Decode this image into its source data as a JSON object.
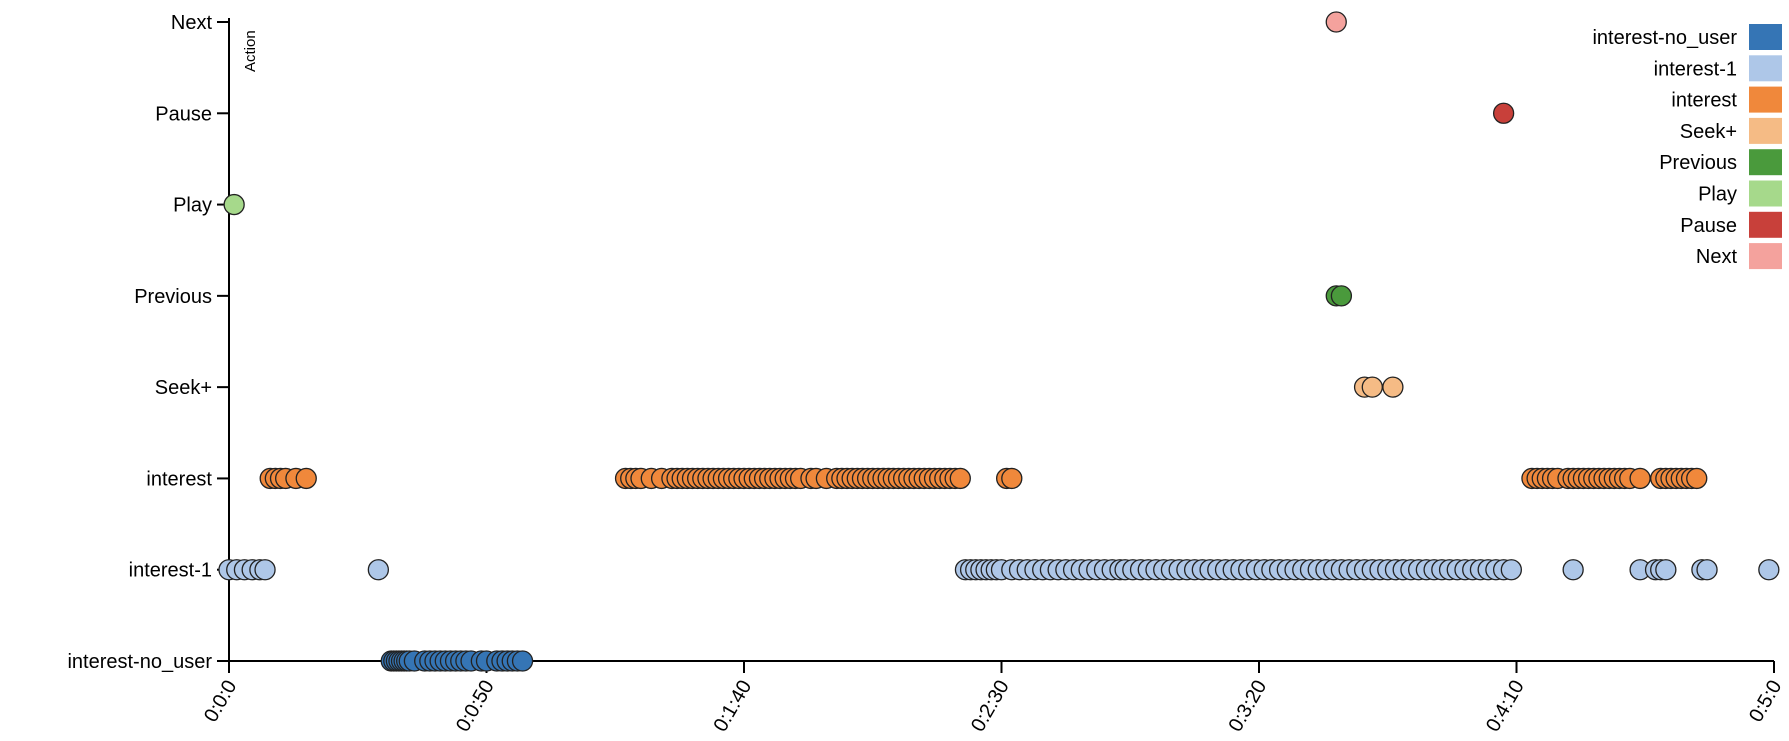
{
  "chart_data": {
    "type": "scatter",
    "title": "",
    "xlabel": "",
    "ylabel": "Action",
    "xlim": [
      0,
      300
    ],
    "x_tick_values": [
      0,
      50,
      100,
      150,
      200,
      250,
      300
    ],
    "x_tick_labels": [
      "0:0:0",
      "0:0:50",
      "0:1:40",
      "0:2:30",
      "0:3:20",
      "0:4:10",
      "0:5:0"
    ],
    "categories": [
      "interest-no_user",
      "interest-1",
      "interest",
      "Seek+",
      "Previous",
      "Play",
      "Pause",
      "Next"
    ],
    "grid": false,
    "legend_position": "top-right",
    "legend": [
      {
        "name": "interest-no_user",
        "color": "#3575b5"
      },
      {
        "name": "interest-1",
        "color": "#aec7e8"
      },
      {
        "name": "interest",
        "color": "#f0883b"
      },
      {
        "name": "Seek+",
        "color": "#f5bb85"
      },
      {
        "name": "Previous",
        "color": "#4a9a3c"
      },
      {
        "name": "Play",
        "color": "#a6d98b"
      },
      {
        "name": "Pause",
        "color": "#c8403a"
      },
      {
        "name": "Next",
        "color": "#f4a29d"
      }
    ],
    "series": [
      {
        "name": "interest-no_user",
        "category": "interest-no_user",
        "color": "#3575b5",
        "x": [
          31.5,
          32,
          32.5,
          33,
          33.5,
          34,
          34.5,
          35,
          36,
          38,
          39,
          40,
          41,
          42,
          43,
          44,
          45,
          46,
          47,
          49,
          50,
          52,
          53,
          54,
          55,
          56,
          57
        ]
      },
      {
        "name": "interest-1",
        "category": "interest-1",
        "color": "#aec7e8",
        "x": [
          0,
          1.5,
          3,
          4.5,
          6,
          7,
          29,
          143,
          144,
          145,
          146,
          147,
          148,
          149,
          150,
          152,
          153.5,
          155,
          156.5,
          158,
          159.5,
          161,
          162.5,
          164,
          165.5,
          167,
          168.5,
          170,
          171.5,
          173,
          174,
          175.5,
          177,
          178.5,
          180,
          181.5,
          183,
          184.5,
          186,
          187.5,
          189,
          190.5,
          192,
          193.5,
          195,
          196.5,
          198,
          199.5,
          201,
          202.5,
          204,
          205.5,
          207,
          208.5,
          210,
          211.5,
          213,
          214.5,
          216,
          217.5,
          219,
          220.5,
          222,
          223.5,
          225,
          226.5,
          228,
          229.5,
          231,
          232.5,
          234,
          235.5,
          237,
          238.5,
          240,
          241.5,
          243,
          244.5,
          246,
          247.5,
          249,
          261,
          274,
          277,
          278,
          279,
          286,
          287,
          299
        ]
      },
      {
        "name": "interest",
        "category": "interest",
        "color": "#f0883b",
        "x": [
          8,
          9,
          10,
          11,
          13,
          15,
          77,
          78,
          79,
          80,
          82,
          84,
          86,
          87,
          88,
          89,
          90,
          91,
          92,
          93,
          94,
          95,
          96,
          97,
          98,
          99,
          100,
          101,
          102,
          103,
          104,
          105,
          106,
          107,
          108,
          109,
          110,
          111,
          113,
          114,
          116,
          118,
          119,
          120,
          121,
          122,
          123,
          124,
          125,
          126,
          127,
          128,
          129,
          130,
          131,
          132,
          133,
          134,
          135,
          136,
          137,
          138,
          139,
          140,
          141,
          142,
          151,
          152,
          253,
          254,
          255,
          256,
          257,
          258,
          260,
          261,
          262,
          263,
          264,
          265,
          266,
          267,
          268,
          269,
          270,
          271,
          272,
          274,
          278,
          279,
          280,
          281,
          282,
          283,
          284,
          285
        ]
      },
      {
        "name": "Seek+",
        "category": "Seek+",
        "color": "#f5bb85",
        "x": [
          220.5,
          222,
          226
        ]
      },
      {
        "name": "Previous",
        "category": "Previous",
        "color": "#4a9a3c",
        "x": [
          215,
          216
        ]
      },
      {
        "name": "Play",
        "category": "Play",
        "color": "#a6d98b",
        "x": [
          1
        ]
      },
      {
        "name": "Pause",
        "category": "Pause",
        "color": "#c8403a",
        "x": [
          247.5
        ]
      },
      {
        "name": "Next",
        "category": "Next",
        "color": "#f4a29d",
        "x": [
          215
        ]
      }
    ]
  }
}
